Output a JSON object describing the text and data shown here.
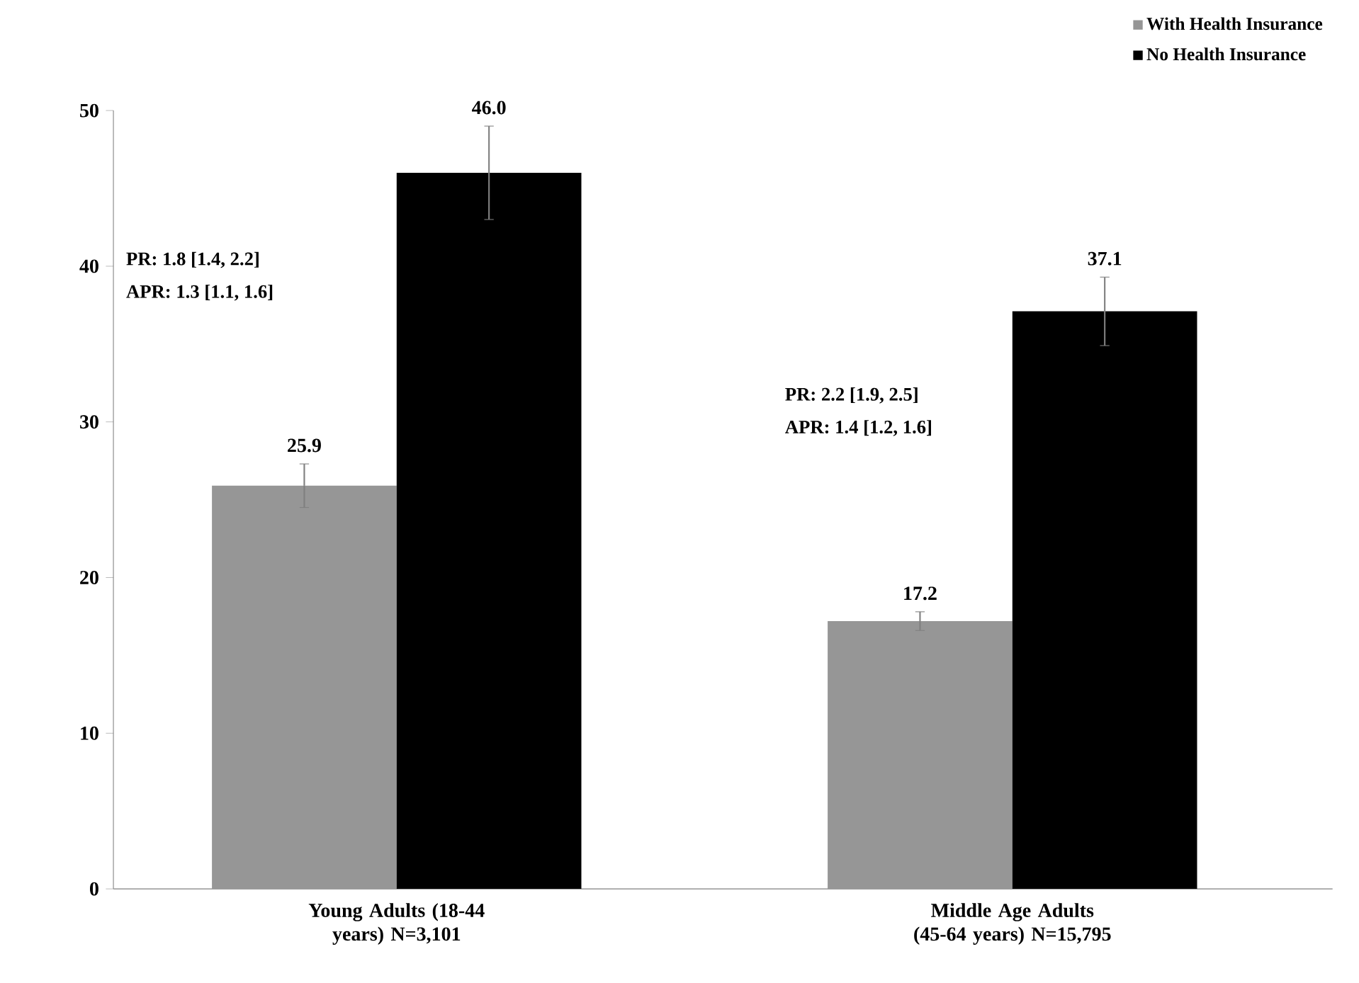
{
  "chart_data": {
    "type": "bar",
    "categories": [
      "Young Adults (18-44 years) N=3,101",
      "Middle Age Adults (45-64 years) N=15,795"
    ],
    "series": [
      {
        "name": "With Health Insurance",
        "color": "#969696",
        "values": [
          25.9,
          17.2
        ],
        "errors": [
          1.4,
          0.6
        ],
        "value_labels": [
          "25.9",
          "17.2"
        ]
      },
      {
        "name": "No Health Insurance",
        "color": "#000000",
        "values": [
          46.0,
          37.1
        ],
        "errors": [
          3.0,
          2.2
        ],
        "value_labels": [
          "46.0",
          "37.1"
        ]
      }
    ],
    "ylim": [
      0,
      50
    ],
    "yticks": [
      0,
      10,
      20,
      30,
      40,
      50
    ],
    "legend": "top right",
    "grid": false,
    "annotations": [
      "PR:     1.8 [1.4, 2.2]",
      "APR:  1.3 [1.1, 1.6]",
      "PR:     2.2 [1.9, 2.5]",
      "APR:  1.4 [1.2, 1.6]"
    ]
  }
}
